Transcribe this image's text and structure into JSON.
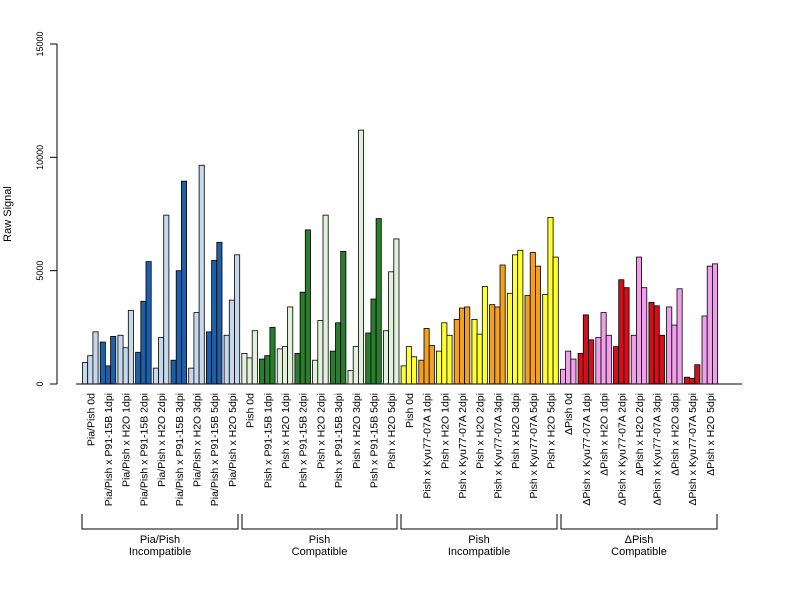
{
  "chart_data": {
    "type": "bar",
    "ylabel": "Raw Signal",
    "ylim": [
      0,
      15000
    ],
    "yticks": [
      0,
      5000,
      10000,
      15000
    ],
    "grid": false,
    "legend": "none",
    "series_colors": {
      "light_blue": "#c6d9ec",
      "dark_blue": "#1f5fa8",
      "light_green": "#e1f1dc",
      "dark_green": "#2a7d2e",
      "yellow": "#ffff33",
      "orange": "#f3a020",
      "pink": "#f0a0ea",
      "red": "#d0101c"
    },
    "categories": [
      {
        "label": "Pia/Pish 0d",
        "values": [
          950,
          1250,
          2300
        ],
        "color": "light_blue"
      },
      {
        "label": "Pia/Pish x P91-15B 1dpi",
        "values": [
          1850,
          800,
          2100
        ],
        "color": "dark_blue"
      },
      {
        "label": "Pia/Pish x H2O 1dpi",
        "values": [
          2150,
          1600,
          3250
        ],
        "color": "light_blue"
      },
      {
        "label": "Pia/Pish x P91-15B 2dpi",
        "values": [
          1400,
          3650,
          5400
        ],
        "color": "dark_blue"
      },
      {
        "label": "Pia/Pish x H2O 2dpi",
        "values": [
          700,
          2050,
          7450
        ],
        "color": "light_blue"
      },
      {
        "label": "Pia/Pish x P91-15B 3dpi",
        "values": [
          1050,
          5000,
          8950
        ],
        "color": "dark_blue"
      },
      {
        "label": "Pia/Pish x H2O 3dpi",
        "values": [
          700,
          3150,
          9650
        ],
        "color": "light_blue"
      },
      {
        "label": "Pia/Pish x P91-15B 5dpi",
        "values": [
          2300,
          5450,
          6250
        ],
        "color": "dark_blue"
      },
      {
        "label": "Pia/Pish x H2O 5dpi",
        "values": [
          2150,
          3700,
          5700
        ],
        "color": "light_blue"
      },
      {
        "label": "Pish 0d",
        "values": [
          1350,
          1150,
          2350
        ],
        "color": "light_green"
      },
      {
        "label": "Pish x P91-15B 1dpi",
        "values": [
          1100,
          1250,
          2500
        ],
        "color": "dark_green"
      },
      {
        "label": "Pish x H2O 1dpi",
        "values": [
          1550,
          1650,
          3400
        ],
        "color": "light_green"
      },
      {
        "label": "Pish x P91-15B 2dpi",
        "values": [
          1350,
          4050,
          6800
        ],
        "color": "dark_green"
      },
      {
        "label": "Pish x H2O 2dpi",
        "values": [
          1050,
          2800,
          7450
        ],
        "color": "light_green"
      },
      {
        "label": "Pish x P91-15B 3dpi",
        "values": [
          1450,
          2700,
          5850
        ],
        "color": "dark_green"
      },
      {
        "label": "Pish x H2O 3dpi",
        "values": [
          600,
          1650,
          11200
        ],
        "color": "light_green"
      },
      {
        "label": "Pish x P91-15B 5dpi",
        "values": [
          2250,
          3750,
          7300
        ],
        "color": "dark_green"
      },
      {
        "label": "Pish x H2O 5dpi",
        "values": [
          2350,
          4950,
          6400
        ],
        "color": "light_green"
      },
      {
        "label": "Pish 0d",
        "values": [
          800,
          1650,
          1200
        ],
        "color": "yellow"
      },
      {
        "label": "Pish x Kyu77-07A 1dpi",
        "values": [
          1050,
          2450,
          1700
        ],
        "color": "orange"
      },
      {
        "label": "Pish x H2O 1dpi",
        "values": [
          1450,
          2700,
          2150
        ],
        "color": "yellow"
      },
      {
        "label": "Pish x Kyu77-07A 2dpi",
        "values": [
          2850,
          3350,
          3400
        ],
        "color": "orange"
      },
      {
        "label": "Pish x H2O 2dpi",
        "values": [
          2850,
          2200,
          4300
        ],
        "color": "yellow"
      },
      {
        "label": "Pish x Kyu77-07A 3dpi",
        "values": [
          3500,
          3400,
          5250
        ],
        "color": "orange"
      },
      {
        "label": "Pish x H2O 3dpi",
        "values": [
          4000,
          5700,
          5900
        ],
        "color": "yellow"
      },
      {
        "label": "Pish x Kyu77-07A 5dpi",
        "values": [
          3900,
          5800,
          5200
        ],
        "color": "orange"
      },
      {
        "label": "Pish x H2O 5dpi",
        "values": [
          3950,
          7350,
          5600
        ],
        "color": "yellow"
      },
      {
        "label": "ΔPish 0d",
        "values": [
          650,
          1450,
          1100
        ],
        "color": "pink"
      },
      {
        "label": "ΔPish x Kyu77-07A 1dpi",
        "values": [
          1350,
          3050,
          1950
        ],
        "color": "red"
      },
      {
        "label": "ΔPish x H2O 1dpi",
        "values": [
          2050,
          3150,
          2150
        ],
        "color": "pink"
      },
      {
        "label": "ΔPish x Kyu77-07A 2dpi",
        "values": [
          1650,
          4600,
          4250
        ],
        "color": "red"
      },
      {
        "label": "ΔPish x H2O 2dpi",
        "values": [
          2150,
          5600,
          4250
        ],
        "color": "pink"
      },
      {
        "label": "ΔPish x Kyu77-07A 3dpi",
        "values": [
          3600,
          3450,
          2150
        ],
        "color": "red"
      },
      {
        "label": "ΔPish x H2O 3dpi",
        "values": [
          3400,
          2600,
          4200
        ],
        "color": "pink"
      },
      {
        "label": "ΔPish x Kyu77-07A 5dpi",
        "values": [
          300,
          250,
          850
        ],
        "color": "red"
      },
      {
        "label": "ΔPish x H2O 5dpi",
        "values": [
          3000,
          5200,
          5300
        ],
        "color": "pink"
      }
    ],
    "groups": [
      {
        "line1": "Pia/Pish",
        "line2": "Incompatible",
        "count": 9
      },
      {
        "line1": "Pish",
        "line2": "Compatible",
        "count": 9
      },
      {
        "line1": "Pish",
        "line2": "Incompatible",
        "count": 9
      },
      {
        "line1": "ΔPish",
        "line2": "Compatible",
        "count": 9
      }
    ]
  }
}
